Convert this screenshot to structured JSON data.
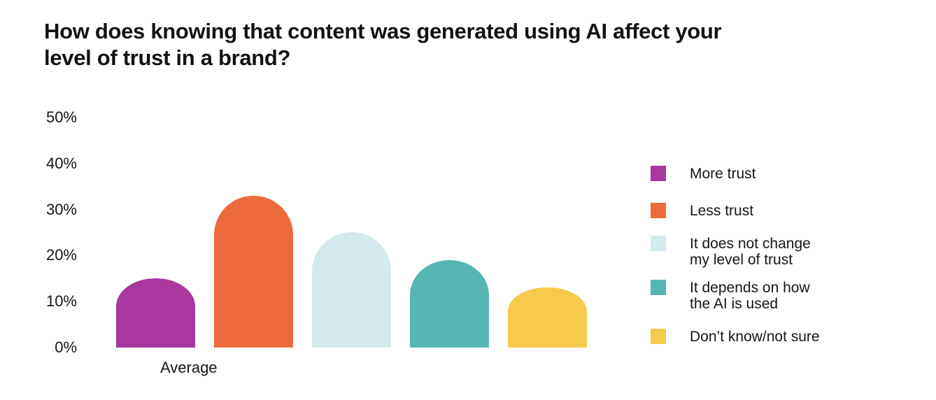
{
  "page": {
    "background_color": "#ffffff",
    "text_color": "#161616"
  },
  "chart_data": {
    "type": "bar",
    "title": "How does knowing that content was generated using AI affect your\nlevel of trust in a brand?",
    "categories": [
      "Average"
    ],
    "series": [
      {
        "name": "More trust",
        "value": 15,
        "color": "#A9379E"
      },
      {
        "name": "Less trust",
        "value": 33,
        "color": "#ED6A3B"
      },
      {
        "name": "It does not change\nmy level of trust",
        "value": 25,
        "color": "#D4E9EC"
      },
      {
        "name": "It depends on how\nthe AI is used",
        "value": 19,
        "color": "#55B6B2"
      },
      {
        "name": "Don’t know/not sure",
        "value": 13,
        "color": "#F6CA4D"
      }
    ],
    "unit": "%",
    "ylim": [
      0,
      50
    ],
    "y_ticks": [
      "50%",
      "40%",
      "30%",
      "20%",
      "10%",
      "0%"
    ],
    "grid": false,
    "axis_lines": false,
    "legend_position": "right",
    "bar_style": "rounded-top"
  }
}
